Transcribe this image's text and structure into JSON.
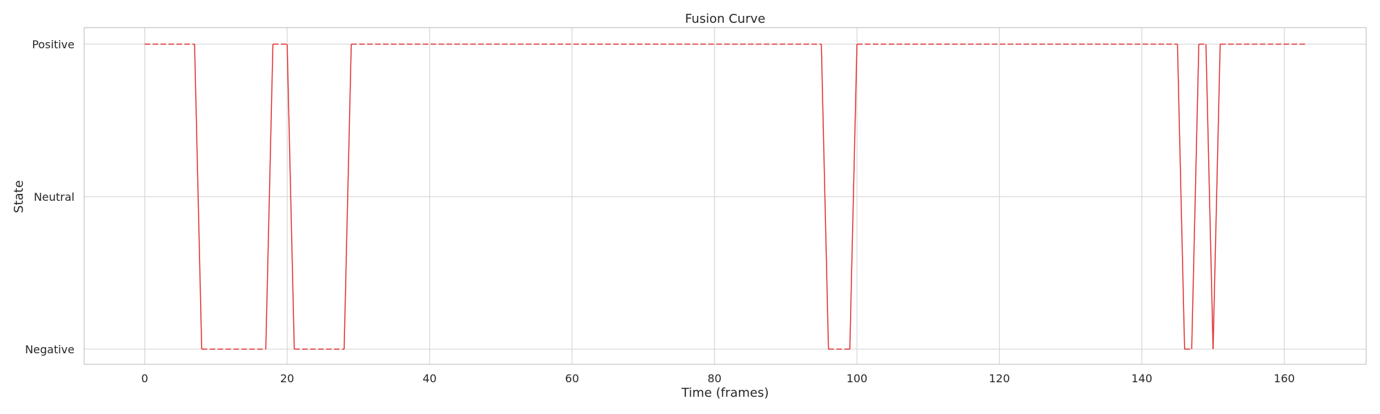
{
  "chart_data": {
    "type": "line",
    "title": "Fusion Curve",
    "xlabel": "Time (frames)",
    "ylabel": "State",
    "xlim": [
      -8.5,
      171.5
    ],
    "x_ticks": [
      0,
      20,
      40,
      60,
      80,
      100,
      120,
      140,
      160
    ],
    "y_categories": [
      "Negative",
      "Neutral",
      "Positive"
    ],
    "grid": true,
    "line_color": "#e03131",
    "line_style_note": "dashed when state is constant, solid on transitions",
    "series": [
      {
        "points": [
          [
            0,
            "Positive"
          ],
          [
            7,
            "Positive"
          ],
          [
            8,
            "Negative"
          ],
          [
            17,
            "Negative"
          ],
          [
            18,
            "Positive"
          ],
          [
            20,
            "Positive"
          ],
          [
            21,
            "Negative"
          ],
          [
            28,
            "Negative"
          ],
          [
            29,
            "Positive"
          ],
          [
            95,
            "Positive"
          ],
          [
            96,
            "Negative"
          ],
          [
            99,
            "Negative"
          ],
          [
            100,
            "Positive"
          ],
          [
            145,
            "Positive"
          ],
          [
            146,
            "Negative"
          ],
          [
            147,
            "Negative"
          ],
          [
            148,
            "Positive"
          ],
          [
            149,
            "Positive"
          ],
          [
            150,
            "Negative"
          ],
          [
            151,
            "Positive"
          ],
          [
            163,
            "Positive"
          ]
        ]
      }
    ]
  }
}
